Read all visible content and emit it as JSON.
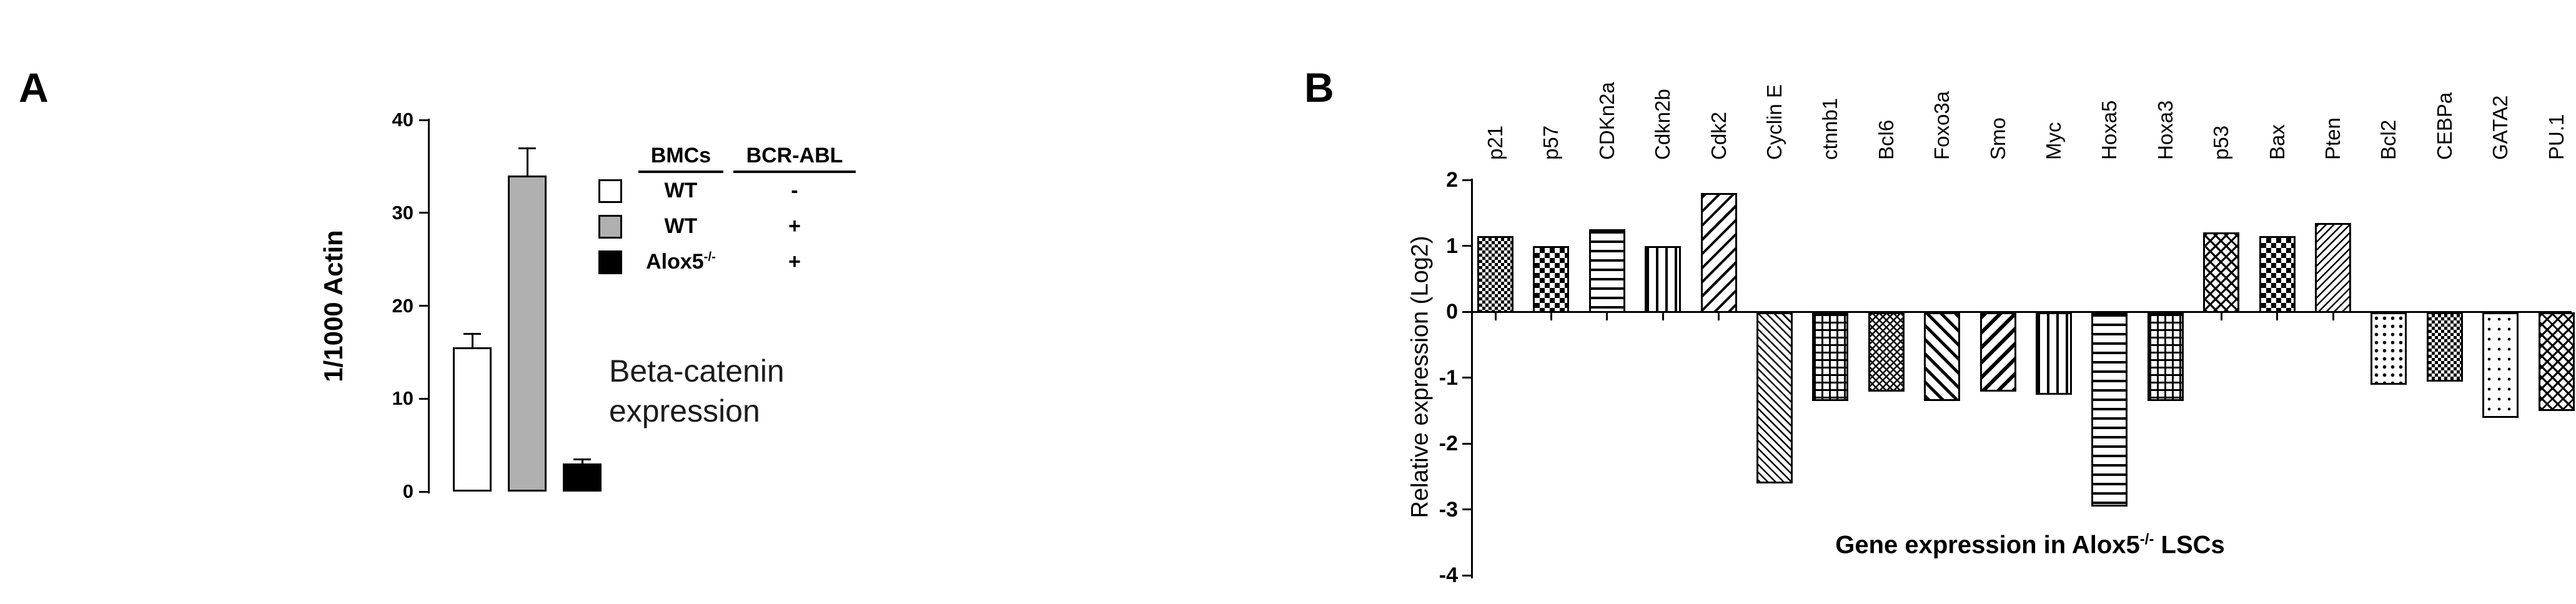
{
  "panels": {
    "a_label": "A",
    "b_label": "B"
  },
  "chart_data": [
    {
      "type": "bar",
      "panel": "A",
      "ylabel": "1/1000 Actin",
      "ylim": [
        0,
        40
      ],
      "yticks": [
        0,
        10,
        20,
        30,
        40
      ],
      "annotation": "Beta-catenin expression",
      "categories": [
        "WT BMCs BCR-ABL -",
        "WT BMCs BCR-ABL +",
        "Alox5-/- BMCs BCR-ABL +"
      ],
      "values": [
        15.5,
        34,
        3
      ],
      "errors": [
        1.5,
        3,
        0.5
      ],
      "bar_colors": [
        "#ffffff",
        "#b0b0b0",
        "#000000"
      ],
      "legend": {
        "columns": [
          "BMCs",
          "BCR-ABL"
        ],
        "rows": [
          {
            "swatch_color": "#ffffff",
            "bmcs": "WT",
            "bmcs_sup": "",
            "bcr_abl": "-"
          },
          {
            "swatch_color": "#b0b0b0",
            "bmcs": "WT",
            "bmcs_sup": "",
            "bcr_abl": "+"
          },
          {
            "swatch_color": "#000000",
            "bmcs": "Alox5",
            "bmcs_sup": "-/-",
            "bcr_abl": "+"
          }
        ]
      }
    },
    {
      "type": "bar",
      "panel": "B",
      "ylabel": "Relative expression (Log2)",
      "ylim": [
        -4,
        2
      ],
      "yticks": [
        2,
        1,
        0,
        -1,
        -2,
        -3,
        -4
      ],
      "title_parts": {
        "main": "Gene expression in Alox5",
        "sup": "-/-",
        "end": " LSCs"
      },
      "categories": [
        "p21",
        "p57",
        "CDKn2a",
        "Cdkn2b",
        "Cdk2",
        "Cyclin E",
        "ctnnb1",
        "Bcl6",
        "Foxo3a",
        "Smo",
        "Myc",
        "Hoxa5",
        "Hoxa3",
        "p53",
        "Bax",
        "Pten",
        "Bcl2",
        "CEBPa",
        "GATA2",
        "PU.1"
      ],
      "values": [
        1.15,
        1.0,
        1.25,
        1.0,
        1.8,
        -2.6,
        -1.35,
        -1.2,
        -1.35,
        -1.2,
        -1.25,
        -2.95,
        -1.35,
        1.2,
        1.15,
        1.35,
        -1.1,
        -1.05,
        -1.6,
        -1.5
      ],
      "patterns": [
        "checker-small",
        "checker",
        "hlines",
        "vlines",
        "diag-up",
        "diag-down-fine",
        "grid",
        "crosshatch-dense",
        "diag-down",
        "diag-up-thick",
        "vlines",
        "hlines",
        "grid",
        "crosshatch",
        "checker",
        "diag-up-fine",
        "dots",
        "checker-small",
        "dots-light",
        "crosshatch"
      ],
      "grid": false,
      "legend_position": "none"
    }
  ]
}
